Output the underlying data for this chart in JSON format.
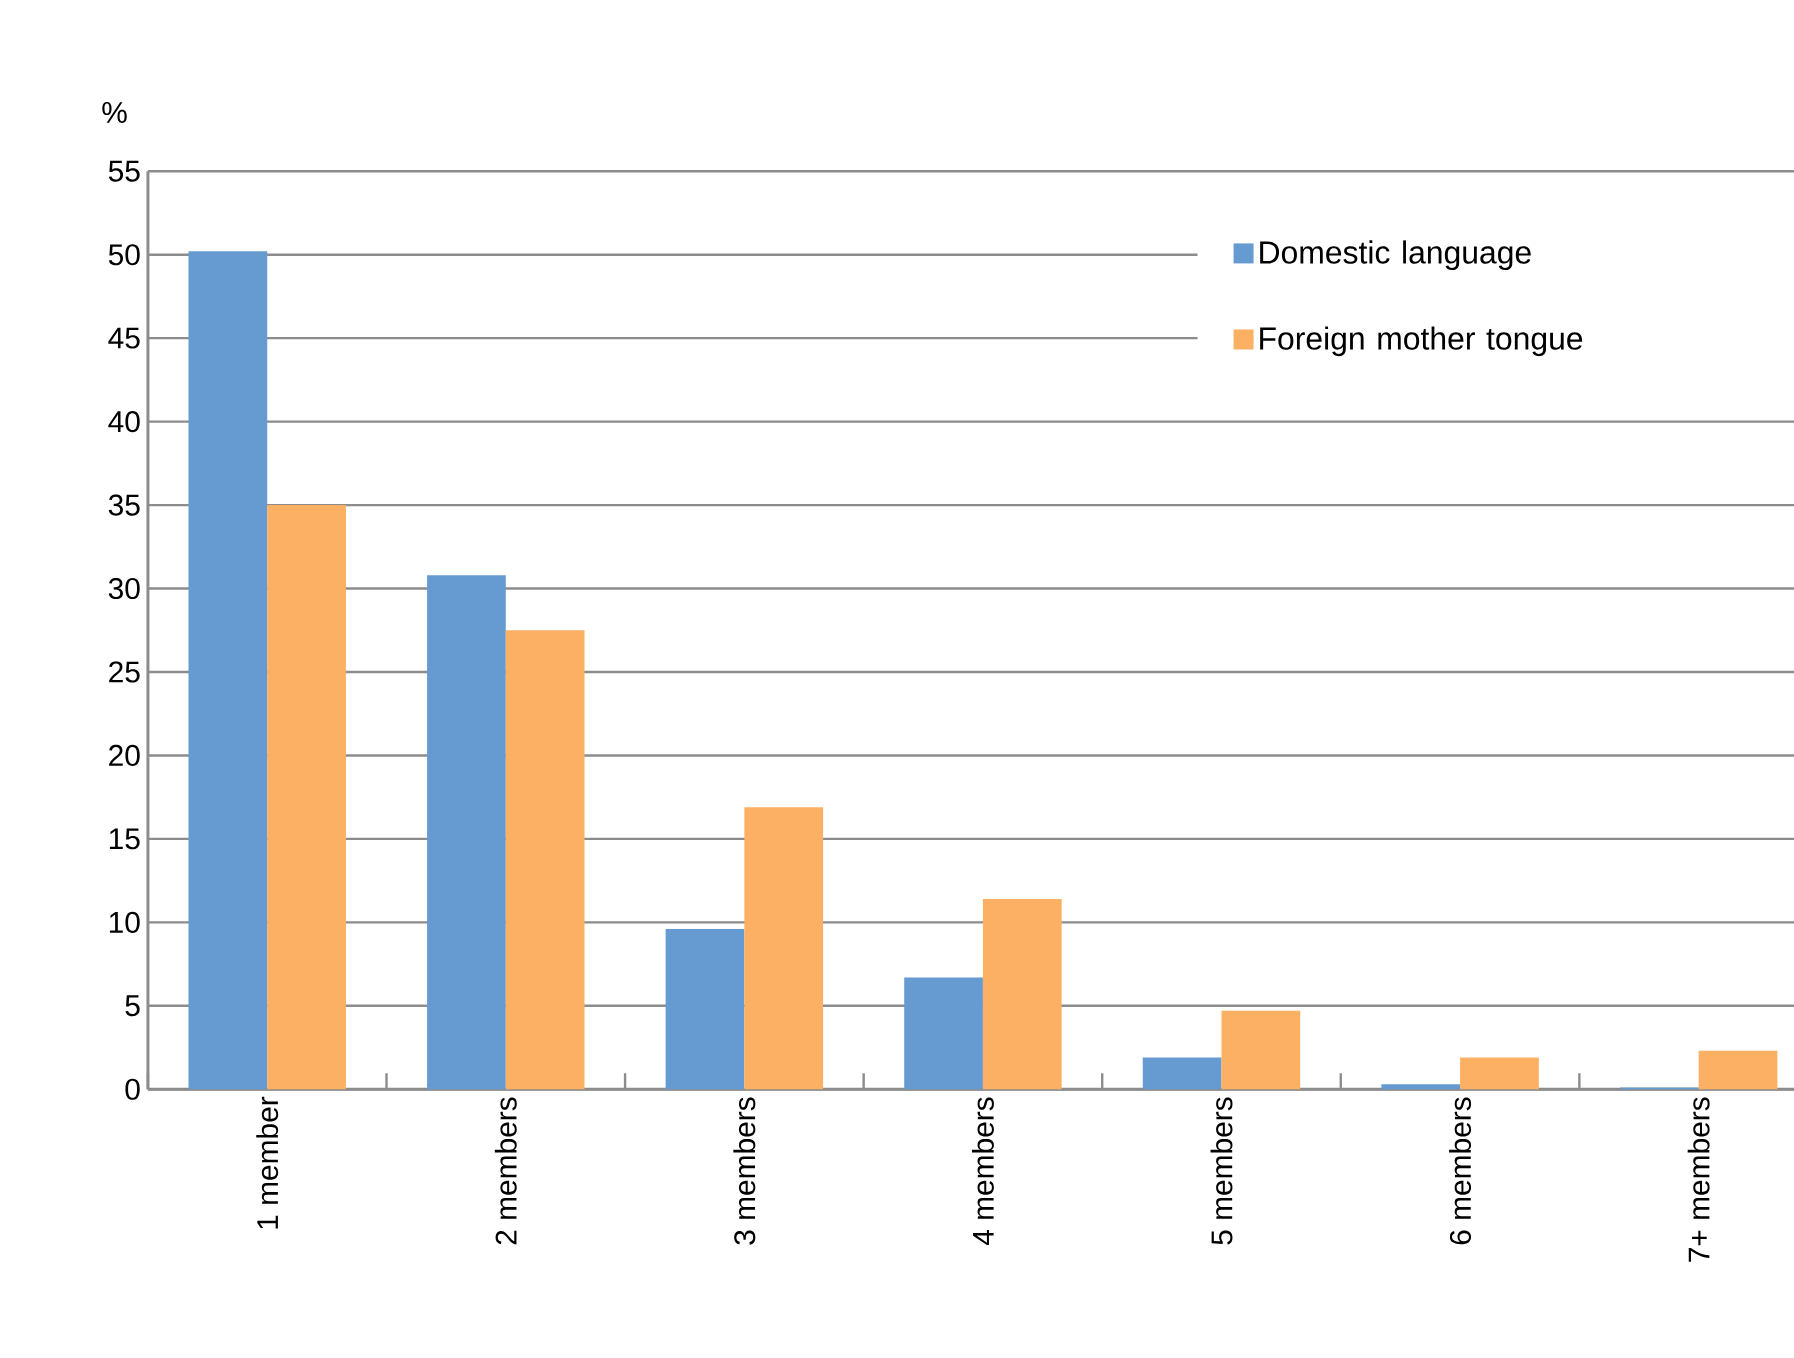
{
  "chart_data": {
    "type": "bar",
    "ylabel": "%",
    "categories": [
      "1 member",
      "2 members",
      "3 members",
      "4 members",
      "5 members",
      "6 members",
      "7+ members"
    ],
    "series": [
      {
        "name": "Domestic language",
        "color": "#669bd2",
        "values": [
          50.2,
          30.8,
          9.6,
          6.7,
          1.9,
          0.3,
          0.1
        ]
      },
      {
        "name": "Foreign mother tongue",
        "color": "#fbb063",
        "values": [
          35.0,
          27.5,
          16.9,
          11.4,
          4.7,
          1.9,
          2.3
        ]
      }
    ],
    "ylim": [
      0,
      55
    ],
    "yticks": [
      0,
      5,
      10,
      15,
      20,
      25,
      30,
      35,
      40,
      45,
      50,
      55
    ],
    "grid": "y",
    "legend": "top right"
  }
}
